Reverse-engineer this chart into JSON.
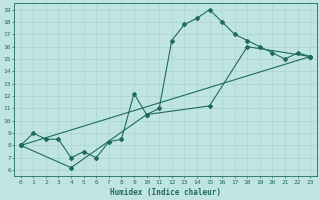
{
  "title": "",
  "xlabel": "Humidex (Indice chaleur)",
  "bg_color": "#c0e4e4",
  "line_color": "#1e6b5e",
  "xlim": [
    -0.5,
    23.5
  ],
  "ylim": [
    5.5,
    19.5
  ],
  "xticks": [
    0,
    1,
    2,
    3,
    4,
    5,
    6,
    7,
    8,
    9,
    10,
    11,
    12,
    13,
    14,
    15,
    16,
    17,
    18,
    19,
    20,
    21,
    22,
    23
  ],
  "yticks": [
    6,
    7,
    8,
    9,
    10,
    11,
    12,
    13,
    14,
    15,
    16,
    17,
    18,
    19
  ],
  "line1_x": [
    0,
    1,
    2,
    3,
    4,
    5,
    6,
    7,
    8,
    9,
    10,
    11,
    12,
    13,
    14,
    15,
    16,
    17,
    18,
    19,
    20,
    21,
    22,
    23
  ],
  "line1_y": [
    8,
    9,
    8.5,
    8.5,
    7,
    7.5,
    7,
    8.3,
    8.5,
    12.2,
    10.5,
    11.0,
    16.5,
    17.8,
    18.3,
    19.0,
    18.0,
    17.0,
    16.5,
    16.0,
    15.5,
    15.0,
    15.5,
    15.2
  ],
  "line2_x": [
    0,
    23
  ],
  "line2_y": [
    8,
    15.2
  ],
  "line3_x": [
    0,
    4,
    10,
    15,
    18,
    23
  ],
  "line3_y": [
    8,
    6.2,
    10.5,
    11.2,
    16.0,
    15.2
  ],
  "grid_color": "#a8d4d4",
  "marker": "D",
  "markersize": 2.0,
  "linewidth": 0.8,
  "tick_fontsize": 4.5,
  "label_fontsize": 5.5,
  "font_color": "#1e6b5e"
}
